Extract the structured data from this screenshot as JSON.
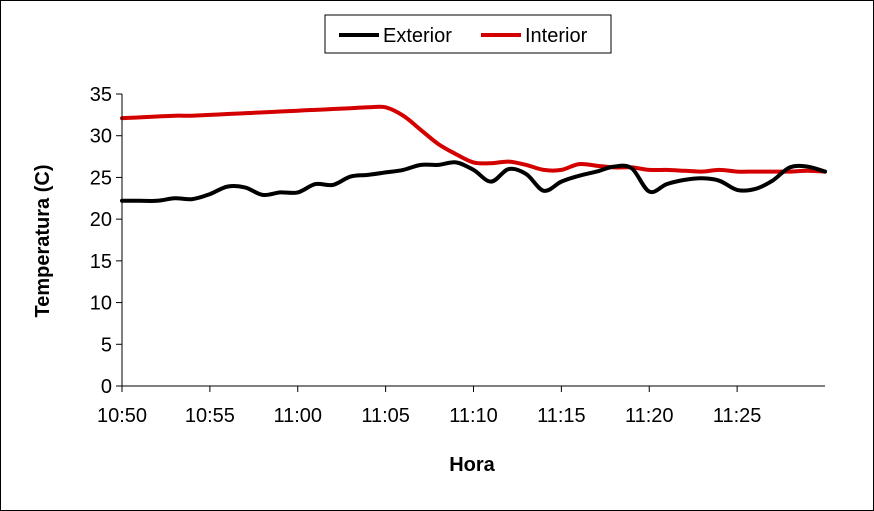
{
  "chart_data": {
    "type": "line",
    "xlabel": "Hora",
    "ylabel": "Temperatura (C)",
    "ylim": [
      0,
      35
    ],
    "yticks": [
      0,
      5,
      10,
      15,
      20,
      25,
      30,
      35
    ],
    "xlim": [
      "10:50",
      "11:30"
    ],
    "xticks": [
      "10:50",
      "10:55",
      "11:00",
      "11:05",
      "11:10",
      "11:15",
      "11:20",
      "11:25"
    ],
    "grid": false,
    "legend_position": "top-center",
    "x": [
      "10:50",
      "10:51",
      "10:52",
      "10:53",
      "10:54",
      "10:55",
      "10:56",
      "10:57",
      "10:58",
      "10:59",
      "11:00",
      "11:01",
      "11:02",
      "11:03",
      "11:04",
      "11:05",
      "11:06",
      "11:07",
      "11:08",
      "11:09",
      "11:10",
      "11:11",
      "11:12",
      "11:13",
      "11:14",
      "11:15",
      "11:16",
      "11:17",
      "11:18",
      "11:19",
      "11:20",
      "11:21",
      "11:22",
      "11:23",
      "11:24",
      "11:25",
      "11:26",
      "11:27",
      "11:28",
      "11:29",
      "11:30"
    ],
    "series": [
      {
        "name": "Exterior",
        "color": "#000000",
        "values": [
          22.2,
          22.2,
          22.2,
          22.5,
          22.4,
          23.0,
          23.9,
          23.8,
          22.9,
          23.2,
          23.2,
          24.2,
          24.1,
          25.1,
          25.3,
          25.6,
          25.9,
          26.5,
          26.5,
          26.8,
          25.9,
          24.5,
          26.0,
          25.4,
          23.4,
          24.5,
          25.2,
          25.7,
          26.3,
          26.1,
          23.3,
          24.2,
          24.7,
          24.9,
          24.6,
          23.5,
          23.6,
          24.6,
          26.2,
          26.3,
          25.7
        ]
      },
      {
        "name": "Interior",
        "color": "#d40000",
        "values": [
          32.1,
          32.2,
          32.3,
          32.4,
          32.4,
          32.5,
          32.6,
          32.7,
          32.8,
          32.9,
          33.0,
          33.1,
          33.2,
          33.3,
          33.4,
          33.4,
          32.4,
          30.7,
          29.0,
          27.8,
          26.8,
          26.7,
          26.9,
          26.5,
          25.9,
          25.9,
          26.6,
          26.4,
          26.2,
          26.2,
          25.9,
          25.9,
          25.8,
          25.7,
          25.9,
          25.7,
          25.7,
          25.7,
          25.7,
          25.8,
          25.7
        ]
      }
    ]
  }
}
